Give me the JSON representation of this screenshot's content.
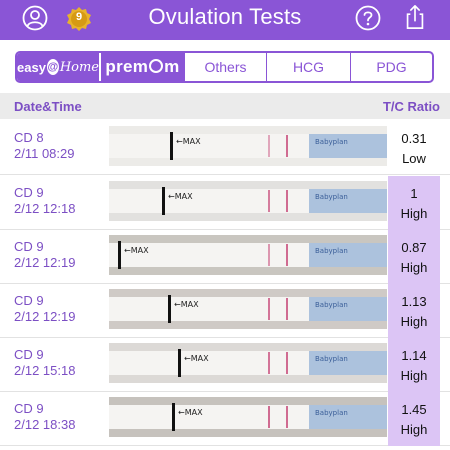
{
  "header": {
    "title": "Ovulation Tests",
    "badge_count": "9",
    "bg_color": "#8a55d6"
  },
  "icons": {
    "left": [
      "user-icon",
      "medal-badge-icon"
    ],
    "right": [
      "help-icon",
      "share-icon"
    ]
  },
  "brand_tabs": {
    "easy_home_a": "easy",
    "easy_home_at": "@",
    "easy_home_b": "Home",
    "premom_a": "prem",
    "premom_b": "m"
  },
  "tabs": [
    "Others",
    "HCG",
    "PDG"
  ],
  "table": {
    "headers": {
      "datetime": "Date&Time",
      "ratio": "T/C Ratio"
    },
    "rows": [
      {
        "cd": "CD 8",
        "datetime": "2/11 08:29",
        "ratio": "0.31",
        "level": "Low",
        "high": false
      },
      {
        "cd": "CD 9",
        "datetime": "2/12 12:18",
        "ratio": "1",
        "level": "High",
        "high": true
      },
      {
        "cd": "CD 9",
        "datetime": "2/12 12:19",
        "ratio": "0.87",
        "level": "High",
        "high": true
      },
      {
        "cd": "CD 9",
        "datetime": "2/12 12:19",
        "ratio": "1.13",
        "level": "High",
        "high": true
      },
      {
        "cd": "CD 9",
        "datetime": "2/12 15:18",
        "ratio": "1.14",
        "level": "High",
        "high": true
      },
      {
        "cd": "CD 9",
        "datetime": "2/12 18:38",
        "ratio": "1.45",
        "level": "High",
        "high": true
      }
    ]
  },
  "strip_text": {
    "max_label": "←MAX",
    "brand_label": "Babyplan"
  },
  "colors": {
    "accent": "#8a55d6",
    "high_cell": "#dcc5f5",
    "label": "#7c4fc4"
  }
}
